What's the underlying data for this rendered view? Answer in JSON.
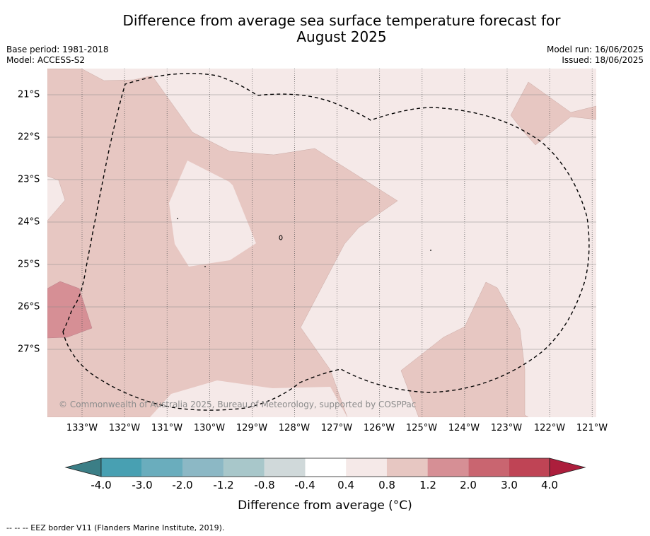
{
  "header": {
    "title_line1": "Difference from average sea surface temperature forecast for",
    "title_line2": "August 2025",
    "base_period": "Base period: 1981-2018",
    "model": "Model: ACCESS-S2",
    "model_run": "Model run: 16/06/2025",
    "issued": "Issued: 18/06/2025"
  },
  "map": {
    "lat_labels": [
      "21°S",
      "22°S",
      "23°S",
      "24°S",
      "25°S",
      "26°S",
      "27°S"
    ],
    "lon_labels": [
      "133°W",
      "132°W",
      "131°W",
      "130°W",
      "129°W",
      "128°W",
      "127°W",
      "126°W",
      "125°W",
      "124°W",
      "123°W",
      "122°W",
      "121°W"
    ],
    "copyright": "© Commonwealth of Australia 2025, Bureau of Meteorology, supported by COSPPac",
    "fill_colors": {
      "anomaly_0_4_to_0_8": "#f5e9e8",
      "anomaly_0_8_to_1_2": "#e7c7c2",
      "anomaly_1_2_to_2_0": "#d68f95"
    }
  },
  "colorbar": {
    "ticks": [
      "-4.0",
      "-3.0",
      "-2.0",
      "-1.2",
      "-0.8",
      "-0.4",
      "0.4",
      "0.8",
      "1.2",
      "2.0",
      "3.0",
      "4.0"
    ],
    "colors": [
      "#3b7e86",
      "#48a0b2",
      "#6aadbd",
      "#8cb8c5",
      "#a8c7ca",
      "#d0d9da",
      "#ffffff",
      "#f5e9e8",
      "#e7c7c2",
      "#d68f95",
      "#c96570",
      "#bf4455",
      "#ac1e3c"
    ],
    "label": "Difference from average (°C)"
  },
  "footnote": "--  --  -- EEZ border V11 (Flanders Marine Institute, 2019)."
}
